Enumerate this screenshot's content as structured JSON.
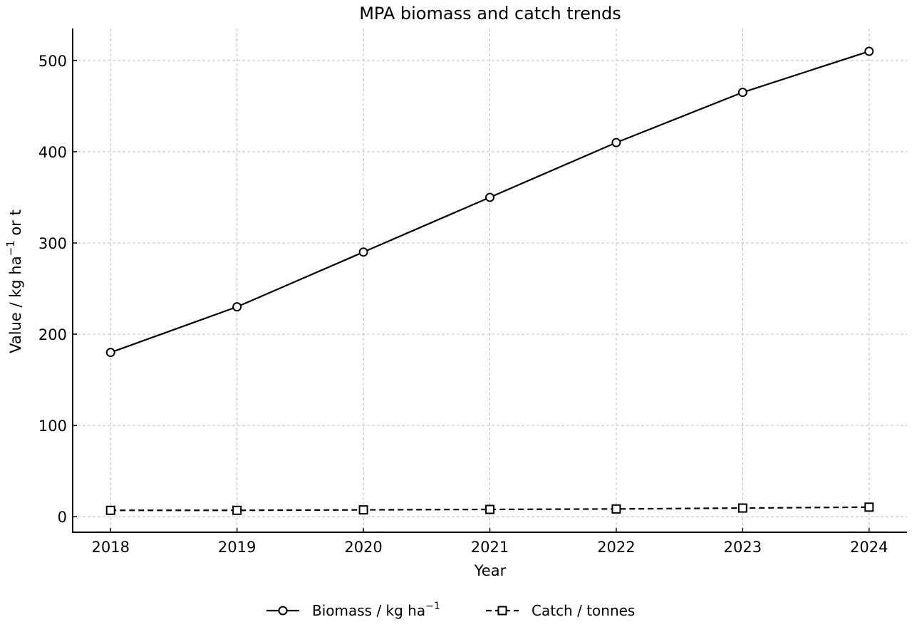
{
  "chart_data": {
    "type": "line",
    "title": "MPA biomass and catch trends",
    "xlabel": "Year",
    "ylabel": "Value / kg ha⁻¹ or t",
    "x": [
      2018,
      2019,
      2020,
      2021,
      2022,
      2023,
      2024
    ],
    "x_ticks": [
      "2018",
      "2019",
      "2020",
      "2021",
      "2022",
      "2023",
      "2024"
    ],
    "xlim": [
      2017.7,
      2024.3
    ],
    "ylim": [
      -17,
      535
    ],
    "y_ticks": [
      0,
      100,
      200,
      300,
      400,
      500
    ],
    "grid": true,
    "legend_position": "bottom-center",
    "series": [
      {
        "name": "Biomass / kg ha⁻¹",
        "marker": "circle",
        "line_style": "solid",
        "color": "#000000",
        "values": [
          180,
          230,
          290,
          350,
          410,
          465,
          510
        ]
      },
      {
        "name": "Catch / tonnes",
        "marker": "square",
        "line_style": "dashed",
        "color": "#000000",
        "values": [
          7,
          7,
          7.5,
          8,
          8.5,
          9.5,
          10.5
        ]
      }
    ]
  }
}
